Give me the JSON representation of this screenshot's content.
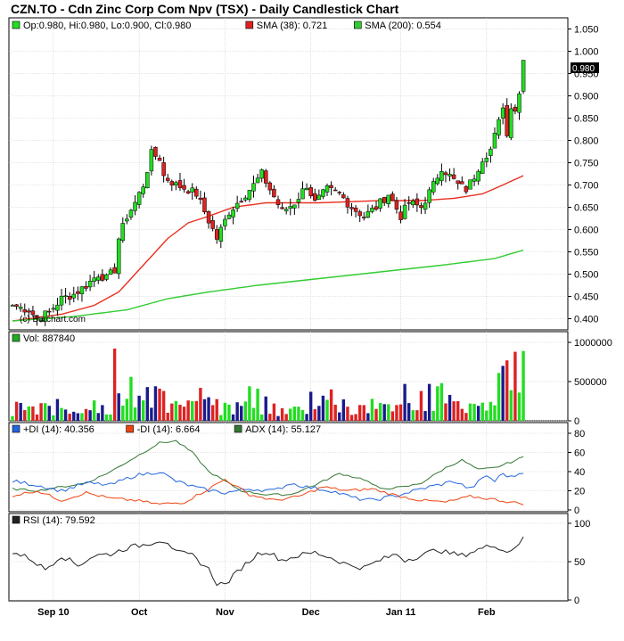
{
  "title": "CZN.TO - Cdn Zinc Corp Com Npv (TSX) - Daily Candlestick Chart",
  "credit": "(c) Barchart.com",
  "last_price_label": "0.980",
  "colors": {
    "up": "#22dd22",
    "down": "#dd2222",
    "sma38": "#e83020",
    "sma200": "#33cc33",
    "vol_blue": "#1a1a8c",
    "di_plus": "#2266dd",
    "di_minus": "#ee4411",
    "adx": "#337733",
    "rsi": "#222222",
    "grid": "#cccccc"
  },
  "legends": {
    "price": [
      {
        "label": "Op:0.980, Hi:0.980, Lo:0.900, Cl:0.980",
        "color": "#22dd22"
      },
      {
        "label": "SMA (38): 0.721",
        "color": "#dd2222"
      },
      {
        "label": "SMA (200): 0.554",
        "color": "#33cc33"
      }
    ],
    "volume": [
      {
        "label": "Vol: 887840",
        "color": "#22aa22"
      }
    ],
    "dmi": [
      {
        "label": "+DI (14): 40.356",
        "color": "#2266dd"
      },
      {
        "label": "-DI (14): 6.664",
        "color": "#ee4411"
      },
      {
        "label": "ADX (14): 55.127",
        "color": "#337733"
      }
    ],
    "rsi": [
      {
        "label": "RSI (14): 79.592",
        "color": "#222222"
      }
    ]
  },
  "chart_data": {
    "type": "candlestick",
    "x_labels": [
      "Sep 10",
      "Oct",
      "Nov",
      "Dec",
      "Jan 11",
      "Feb"
    ],
    "x_label_index": [
      10,
      31,
      52,
      73,
      95,
      116
    ],
    "n_days": 131,
    "price_axis": {
      "ticks": [
        "1.050",
        "1.000",
        "0.950",
        "0.900",
        "0.850",
        "0.800",
        "0.750",
        "0.700",
        "0.650",
        "0.600",
        "0.550",
        "0.500",
        "0.450",
        "0.400"
      ],
      "ylim": [
        0.375,
        1.075
      ]
    },
    "volume_axis": {
      "ticks": [
        "1000000",
        "500000",
        "0"
      ],
      "ylim": [
        0,
        1000000
      ]
    },
    "dmi_axis": {
      "ticks": [
        "80",
        "60",
        "40",
        "20",
        "0"
      ],
      "ylim": [
        0,
        85
      ]
    },
    "rsi_axis": {
      "ticks": [
        "100",
        "50",
        "0"
      ],
      "ylim": [
        0,
        100
      ]
    },
    "series_names": {
      "sma38": "SMA (38)",
      "sma200": "SMA (200)",
      "di_plus": "+DI (14)",
      "di_minus": "-DI (14)",
      "adx": "ADX (14)",
      "rsi": "RSI (14)",
      "volume": "Vol"
    },
    "close_anchors": [
      [
        0,
        0.43
      ],
      [
        4,
        0.42
      ],
      [
        6,
        0.4
      ],
      [
        9,
        0.415
      ],
      [
        12,
        0.445
      ],
      [
        15,
        0.455
      ],
      [
        18,
        0.475
      ],
      [
        21,
        0.5
      ],
      [
        23,
        0.49
      ],
      [
        25,
        0.51
      ],
      [
        26,
        0.58
      ],
      [
        28,
        0.63
      ],
      [
        30,
        0.66
      ],
      [
        32,
        0.7
      ],
      [
        34,
        0.77
      ],
      [
        36,
        0.76
      ],
      [
        37,
        0.72
      ],
      [
        40,
        0.7
      ],
      [
        43,
        0.69
      ],
      [
        45,
        0.68
      ],
      [
        47,
        0.64
      ],
      [
        50,
        0.58
      ],
      [
        53,
        0.64
      ],
      [
        56,
        0.67
      ],
      [
        59,
        0.7
      ],
      [
        61,
        0.725
      ],
      [
        63,
        0.69
      ],
      [
        66,
        0.64
      ],
      [
        69,
        0.66
      ],
      [
        72,
        0.7
      ],
      [
        74,
        0.66
      ],
      [
        77,
        0.69
      ],
      [
        80,
        0.68
      ],
      [
        83,
        0.65
      ],
      [
        86,
        0.63
      ],
      [
        89,
        0.65
      ],
      [
        92,
        0.68
      ],
      [
        95,
        0.63
      ],
      [
        97,
        0.66
      ],
      [
        100,
        0.65
      ],
      [
        103,
        0.7
      ],
      [
        105,
        0.74
      ],
      [
        107,
        0.72
      ],
      [
        109,
        0.7
      ],
      [
        111,
        0.69
      ],
      [
        113,
        0.72
      ],
      [
        115,
        0.76
      ],
      [
        117,
        0.78
      ],
      [
        119,
        0.84
      ],
      [
        120,
        0.88
      ],
      [
        121,
        0.81
      ],
      [
        122,
        0.88
      ],
      [
        123,
        0.87
      ],
      [
        124,
        0.905
      ],
      [
        125,
        0.98
      ]
    ],
    "sma38_anchors": [
      [
        0,
        0.395
      ],
      [
        12,
        0.41
      ],
      [
        20,
        0.43
      ],
      [
        26,
        0.46
      ],
      [
        32,
        0.52
      ],
      [
        38,
        0.58
      ],
      [
        43,
        0.615
      ],
      [
        48,
        0.63
      ],
      [
        54,
        0.65
      ],
      [
        62,
        0.66
      ],
      [
        75,
        0.66
      ],
      [
        90,
        0.665
      ],
      [
        100,
        0.665
      ],
      [
        108,
        0.67
      ],
      [
        115,
        0.68
      ],
      [
        120,
        0.7
      ],
      [
        125,
        0.721
      ]
    ],
    "sma200_anchors": [
      [
        0,
        0.395
      ],
      [
        15,
        0.405
      ],
      [
        28,
        0.42
      ],
      [
        38,
        0.445
      ],
      [
        48,
        0.46
      ],
      [
        60,
        0.475
      ],
      [
        75,
        0.49
      ],
      [
        90,
        0.505
      ],
      [
        105,
        0.52
      ],
      [
        118,
        0.535
      ],
      [
        125,
        0.554
      ]
    ],
    "di_plus_anchors": [
      [
        0,
        30
      ],
      [
        6,
        26
      ],
      [
        12,
        20
      ],
      [
        18,
        28
      ],
      [
        24,
        26
      ],
      [
        30,
        36
      ],
      [
        36,
        40
      ],
      [
        40,
        30
      ],
      [
        46,
        22
      ],
      [
        52,
        18
      ],
      [
        58,
        22
      ],
      [
        64,
        20
      ],
      [
        68,
        28
      ],
      [
        72,
        24
      ],
      [
        78,
        20
      ],
      [
        84,
        12
      ],
      [
        88,
        10
      ],
      [
        94,
        15
      ],
      [
        100,
        22
      ],
      [
        104,
        26
      ],
      [
        108,
        30
      ],
      [
        112,
        22
      ],
      [
        116,
        36
      ],
      [
        118,
        30
      ],
      [
        120,
        38
      ],
      [
        122,
        34
      ],
      [
        125,
        40
      ]
    ],
    "di_minus_anchors": [
      [
        0,
        15
      ],
      [
        6,
        20
      ],
      [
        12,
        10
      ],
      [
        18,
        18
      ],
      [
        24,
        12
      ],
      [
        30,
        10
      ],
      [
        36,
        6
      ],
      [
        42,
        8
      ],
      [
        48,
        22
      ],
      [
        52,
        32
      ],
      [
        58,
        16
      ],
      [
        64,
        10
      ],
      [
        70,
        14
      ],
      [
        76,
        24
      ],
      [
        82,
        20
      ],
      [
        88,
        22
      ],
      [
        94,
        15
      ],
      [
        100,
        10
      ],
      [
        106,
        8
      ],
      [
        112,
        14
      ],
      [
        118,
        11
      ],
      [
        122,
        8
      ],
      [
        125,
        6.7
      ]
    ],
    "adx_anchors": [
      [
        0,
        22
      ],
      [
        6,
        20
      ],
      [
        12,
        24
      ],
      [
        18,
        28
      ],
      [
        24,
        40
      ],
      [
        30,
        55
      ],
      [
        36,
        70
      ],
      [
        40,
        72
      ],
      [
        44,
        60
      ],
      [
        48,
        40
      ],
      [
        52,
        30
      ],
      [
        56,
        20
      ],
      [
        62,
        16
      ],
      [
        68,
        16
      ],
      [
        74,
        26
      ],
      [
        80,
        38
      ],
      [
        86,
        32
      ],
      [
        90,
        22
      ],
      [
        96,
        24
      ],
      [
        100,
        28
      ],
      [
        106,
        44
      ],
      [
        110,
        52
      ],
      [
        114,
        42
      ],
      [
        118,
        44
      ],
      [
        122,
        50
      ],
      [
        125,
        55.1
      ]
    ],
    "rsi_anchors": [
      [
        0,
        62
      ],
      [
        4,
        55
      ],
      [
        8,
        40
      ],
      [
        12,
        58
      ],
      [
        16,
        45
      ],
      [
        20,
        58
      ],
      [
        24,
        60
      ],
      [
        28,
        68
      ],
      [
        32,
        72
      ],
      [
        36,
        78
      ],
      [
        38,
        76
      ],
      [
        40,
        62
      ],
      [
        44,
        58
      ],
      [
        48,
        40
      ],
      [
        50,
        22
      ],
      [
        52,
        20
      ],
      [
        56,
        42
      ],
      [
        60,
        60
      ],
      [
        62,
        64
      ],
      [
        66,
        52
      ],
      [
        70,
        58
      ],
      [
        74,
        62
      ],
      [
        78,
        55
      ],
      [
        82,
        46
      ],
      [
        86,
        42
      ],
      [
        90,
        52
      ],
      [
        94,
        60
      ],
      [
        96,
        52
      ],
      [
        100,
        58
      ],
      [
        104,
        66
      ],
      [
        106,
        62
      ],
      [
        110,
        58
      ],
      [
        114,
        66
      ],
      [
        118,
        72
      ],
      [
        121,
        62
      ],
      [
        123,
        70
      ],
      [
        125,
        79.6
      ]
    ],
    "volume_highlights": [
      [
        0,
        60000
      ],
      [
        6,
        80000
      ],
      [
        10,
        70000
      ],
      [
        14,
        90000
      ],
      [
        18,
        150000
      ],
      [
        20,
        260000
      ],
      [
        22,
        200000
      ],
      [
        24,
        80000
      ],
      [
        25,
        920000
      ],
      [
        26,
        350000
      ],
      [
        28,
        280000
      ],
      [
        29,
        560000
      ],
      [
        31,
        320000
      ],
      [
        33,
        430000
      ],
      [
        35,
        440000
      ],
      [
        36,
        410000
      ],
      [
        37,
        380000
      ],
      [
        39,
        220000
      ],
      [
        42,
        180000
      ],
      [
        44,
        250000
      ],
      [
        46,
        420000
      ],
      [
        48,
        300000
      ],
      [
        52,
        230000
      ],
      [
        56,
        190000
      ],
      [
        58,
        440000
      ],
      [
        60,
        410000
      ],
      [
        62,
        310000
      ],
      [
        64,
        220000
      ],
      [
        66,
        160000
      ],
      [
        70,
        180000
      ],
      [
        73,
        370000
      ],
      [
        76,
        320000
      ],
      [
        78,
        400000
      ],
      [
        82,
        180000
      ],
      [
        86,
        200000
      ],
      [
        88,
        280000
      ],
      [
        92,
        210000
      ],
      [
        96,
        470000
      ],
      [
        100,
        380000
      ],
      [
        102,
        470000
      ],
      [
        104,
        440000
      ],
      [
        105,
        480000
      ],
      [
        107,
        330000
      ],
      [
        109,
        250000
      ],
      [
        112,
        220000
      ],
      [
        114,
        190000
      ],
      [
        116,
        130000
      ],
      [
        119,
        610000
      ],
      [
        120,
        700000
      ],
      [
        121,
        770000
      ],
      [
        122,
        390000
      ],
      [
        123,
        880000
      ],
      [
        124,
        360000
      ],
      [
        125,
        890000
      ]
    ]
  }
}
